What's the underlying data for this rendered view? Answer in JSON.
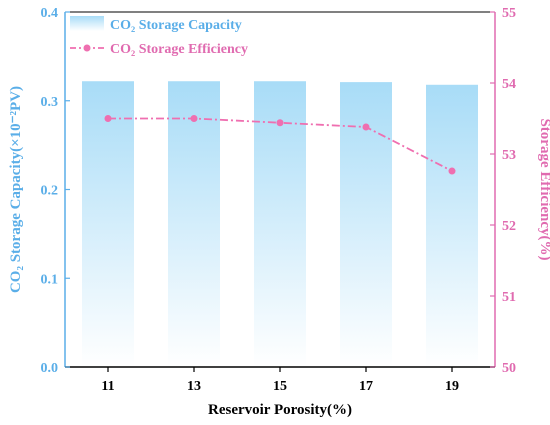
{
  "chart_data": {
    "type": "bar",
    "categories": [
      "11",
      "13",
      "15",
      "17",
      "19"
    ],
    "xlabel": "Reservoir Porosity(%)",
    "series": [
      {
        "name": "CO₂ Storage Capacity",
        "kind": "bar",
        "axis": "left",
        "values": [
          0.322,
          0.322,
          0.322,
          0.321,
          0.318
        ],
        "color": "#a8dcf7"
      },
      {
        "name": "CO₂ Storage Efficiency",
        "kind": "line",
        "axis": "right",
        "values": [
          53.5,
          53.5,
          53.44,
          53.38,
          52.76
        ],
        "color": "#ef6fb0"
      }
    ],
    "y_left": {
      "label": "CO₂ Storage Capacity(×10⁻²PV)",
      "ylim": [
        0.0,
        0.4
      ],
      "ticks": [
        "0.0",
        "0.1",
        "0.2",
        "0.3",
        "0.4"
      ],
      "color": "#5aaee8"
    },
    "y_right": {
      "label": "Storage Efficiency(%)",
      "ylim": [
        50,
        55
      ],
      "ticks": [
        "50",
        "51",
        "52",
        "53",
        "54",
        "55"
      ],
      "color": "#e06bb0"
    },
    "grid": false,
    "legend": "top-left"
  }
}
